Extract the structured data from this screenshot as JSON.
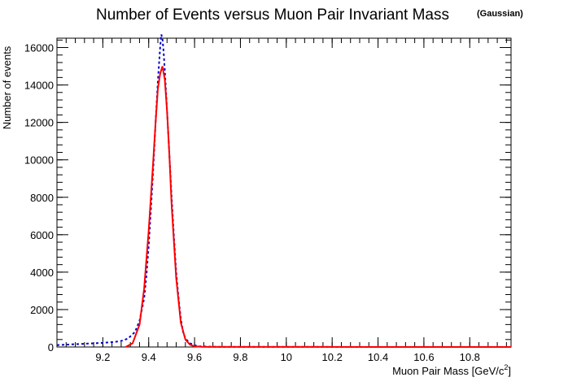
{
  "chart_data": {
    "type": "line",
    "title": "Number of Events versus Muon Pair Invariant Mass",
    "subtitle": "(Gaussian)",
    "xlabel": "Muon Pair Mass [GeV/c",
    "xlabel_sup": "2",
    "xlabel_end": "]",
    "ylabel": "Number of events",
    "xlim": [
      9.0,
      10.98
    ],
    "ylim": [
      0,
      16500
    ],
    "x_ticks": [
      9.2,
      9.4,
      9.6,
      9.8,
      10.0,
      10.2,
      10.4,
      10.6,
      10.8
    ],
    "x_tick_labels": [
      "9.2",
      "9.4",
      "9.6",
      "9.8",
      "10",
      "10.2",
      "10.4",
      "10.6",
      "10.8"
    ],
    "y_ticks": [
      0,
      2000,
      4000,
      6000,
      8000,
      10000,
      12000,
      14000,
      16000
    ],
    "y_tick_labels": [
      "0",
      "2000",
      "4000",
      "6000",
      "8000",
      "10000",
      "12000",
      "14000",
      "16000"
    ],
    "grid": false,
    "series": [
      {
        "style": "histogram-dashed",
        "color": "#0000cc",
        "x": [
          9.0,
          9.05,
          9.1,
          9.15,
          9.2,
          9.25,
          9.28,
          9.31,
          9.34,
          9.36,
          9.38,
          9.39,
          9.4,
          9.41,
          9.42,
          9.43,
          9.44,
          9.45,
          9.455,
          9.46,
          9.465,
          9.47,
          9.48,
          9.49,
          9.5,
          9.51,
          9.52,
          9.53,
          9.54,
          9.55,
          9.56,
          9.58,
          9.6,
          9.62,
          9.65,
          9.7,
          9.8,
          10.0,
          10.5,
          10.98
        ],
        "y": [
          100,
          130,
          160,
          190,
          220,
          270,
          320,
          450,
          800,
          1400,
          2600,
          3800,
          5400,
          7400,
          9600,
          12000,
          14200,
          16000,
          16700,
          16500,
          15800,
          14800,
          12600,
          10300,
          8000,
          5900,
          4000,
          2600,
          1500,
          800,
          450,
          200,
          90,
          40,
          20,
          10,
          5,
          3,
          2,
          2
        ]
      },
      {
        "style": "fit-line",
        "color": "#ff0000",
        "x": [
          9.3,
          9.33,
          9.36,
          9.38,
          9.4,
          9.42,
          9.43,
          9.44,
          9.45,
          9.46,
          9.47,
          9.48,
          9.49,
          9.5,
          9.52,
          9.54,
          9.56,
          9.58,
          9.6,
          9.63,
          9.7,
          10.0,
          10.5,
          10.98
        ],
        "y": [
          0,
          200,
          1200,
          3100,
          6200,
          10000,
          12000,
          13800,
          14600,
          15000,
          14300,
          12600,
          10300,
          7600,
          3700,
          1300,
          400,
          120,
          40,
          10,
          5,
          3,
          2,
          2
        ]
      }
    ]
  }
}
